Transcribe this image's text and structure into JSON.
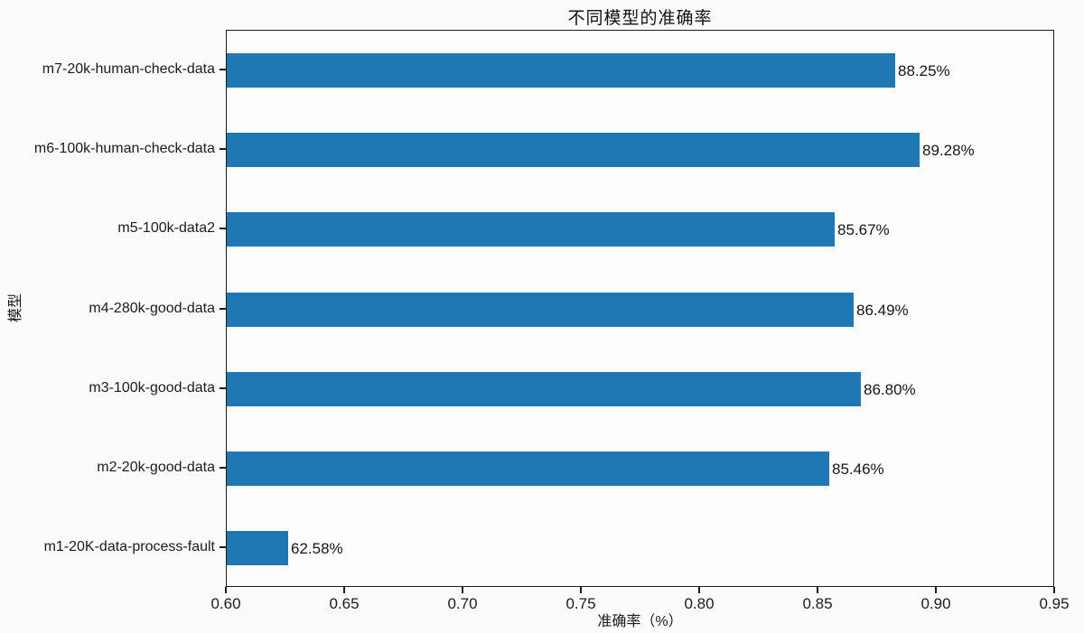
{
  "chart_data": {
    "type": "bar",
    "orientation": "horizontal",
    "title": "不同模型的准确率",
    "xlabel": "准确率（%）",
    "ylabel": "模型",
    "categories": [
      "m7-20k-human-check-data",
      "m6-100k-human-check-data",
      "m5-100k-data2",
      "m4-280k-good-data",
      "m3-100k-good-data",
      "m2-20k-good-data",
      "m1-20K-data-process-fault"
    ],
    "values": [
      0.8825,
      0.8928,
      0.8567,
      0.8649,
      0.868,
      0.8546,
      0.6258
    ],
    "value_labels": [
      "88.25%",
      "89.28%",
      "85.67%",
      "86.49%",
      "86.80%",
      "85.46%",
      "62.58%"
    ],
    "xlim": [
      0.6,
      0.95
    ],
    "xticks": [
      "0.60",
      "0.65",
      "0.70",
      "0.75",
      "0.80",
      "0.85",
      "0.90",
      "0.95"
    ],
    "bar_color": "#1f77b4",
    "grid": false,
    "legend": "none"
  }
}
